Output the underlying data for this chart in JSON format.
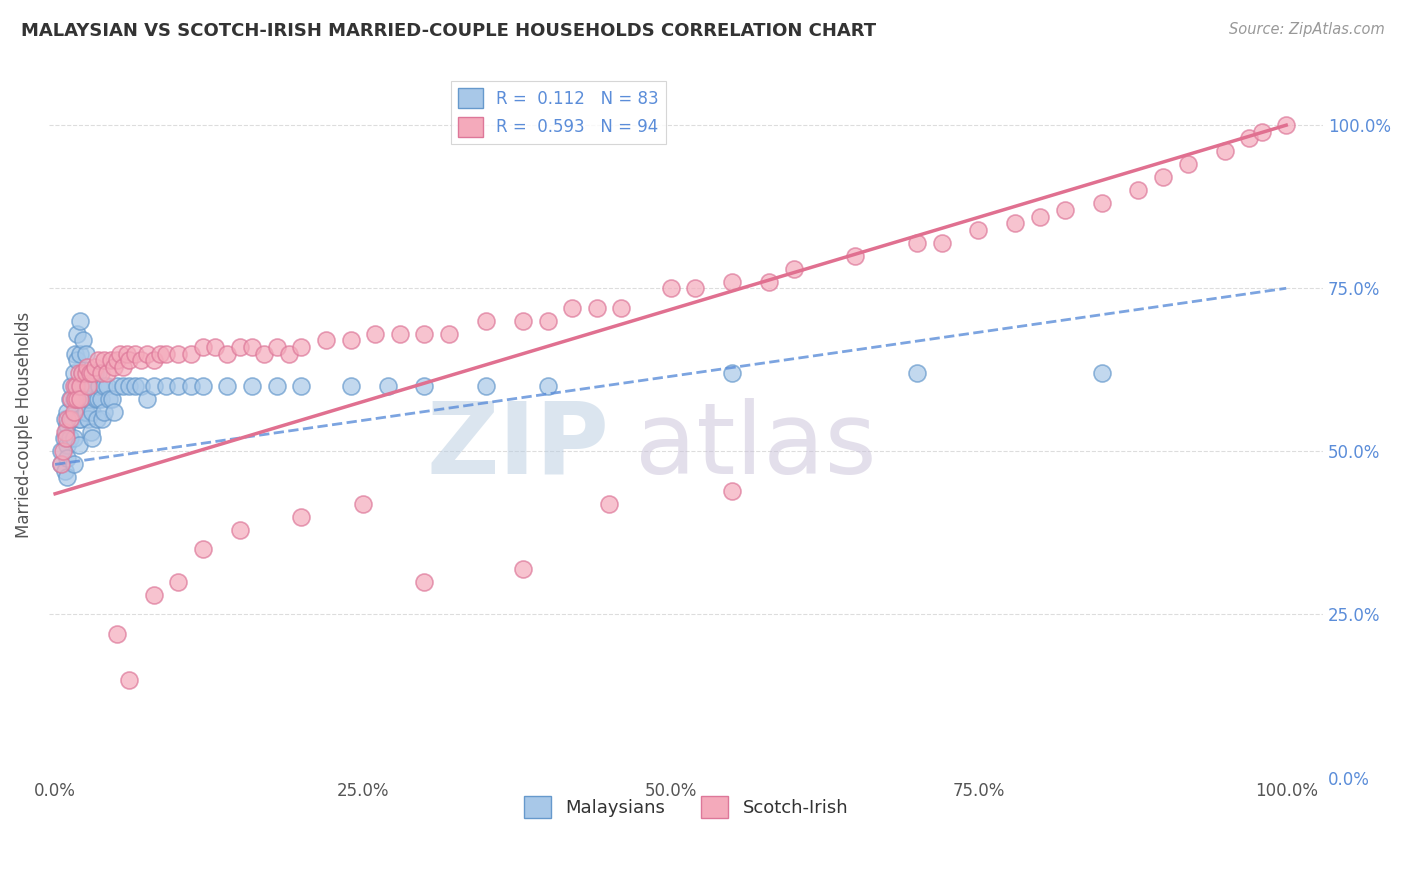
{
  "title": "MALAYSIAN VS SCOTCH-IRISH MARRIED-COUPLE HOUSEHOLDS CORRELATION CHART",
  "source": "Source: ZipAtlas.com",
  "ylabel": "Married-couple Households",
  "r_blue": 0.112,
  "n_blue": 83,
  "r_pink": 0.593,
  "n_pink": 94,
  "blue_color": "#A8C8E8",
  "blue_edge_color": "#6699CC",
  "blue_line_color": "#5B8DD9",
  "pink_color": "#F4AABB",
  "pink_edge_color": "#DD7799",
  "pink_line_color": "#E07090",
  "right_tick_color": "#5B8DD9",
  "grid_color": "#DDDDDD",
  "background": "#FFFFFF",
  "blue_line_intercept": 0.48,
  "blue_line_slope": 0.27,
  "pink_line_intercept": 0.435,
  "pink_line_slope": 0.565,
  "blue_x": [
    0.005,
    0.005,
    0.007,
    0.008,
    0.008,
    0.009,
    0.01,
    0.01,
    0.01,
    0.01,
    0.01,
    0.012,
    0.012,
    0.013,
    0.014,
    0.015,
    0.015,
    0.015,
    0.015,
    0.016,
    0.017,
    0.017,
    0.018,
    0.018,
    0.018,
    0.019,
    0.019,
    0.02,
    0.02,
    0.02,
    0.02,
    0.022,
    0.023,
    0.023,
    0.024,
    0.025,
    0.025,
    0.025,
    0.026,
    0.027,
    0.028,
    0.028,
    0.029,
    0.03,
    0.03,
    0.03,
    0.032,
    0.033,
    0.034,
    0.035,
    0.035,
    0.036,
    0.037,
    0.038,
    0.04,
    0.04,
    0.042,
    0.044,
    0.046,
    0.048,
    0.05,
    0.055,
    0.06,
    0.065,
    0.07,
    0.075,
    0.08,
    0.09,
    0.1,
    0.11,
    0.12,
    0.14,
    0.16,
    0.18,
    0.2,
    0.24,
    0.27,
    0.3,
    0.35,
    0.4,
    0.55,
    0.7,
    0.85
  ],
  "blue_y": [
    0.5,
    0.48,
    0.52,
    0.55,
    0.47,
    0.53,
    0.56,
    0.54,
    0.51,
    0.49,
    0.46,
    0.58,
    0.52,
    0.6,
    0.55,
    0.62,
    0.58,
    0.52,
    0.48,
    0.65,
    0.6,
    0.56,
    0.68,
    0.64,
    0.58,
    0.55,
    0.51,
    0.7,
    0.65,
    0.6,
    0.55,
    0.62,
    0.67,
    0.6,
    0.56,
    0.65,
    0.6,
    0.56,
    0.58,
    0.55,
    0.62,
    0.58,
    0.53,
    0.6,
    0.56,
    0.52,
    0.62,
    0.58,
    0.55,
    0.62,
    0.58,
    0.6,
    0.58,
    0.55,
    0.6,
    0.56,
    0.6,
    0.58,
    0.58,
    0.56,
    0.6,
    0.6,
    0.6,
    0.6,
    0.6,
    0.58,
    0.6,
    0.6,
    0.6,
    0.6,
    0.6,
    0.6,
    0.6,
    0.6,
    0.6,
    0.6,
    0.6,
    0.6,
    0.6,
    0.6,
    0.62,
    0.62,
    0.62
  ],
  "pink_x": [
    0.005,
    0.006,
    0.008,
    0.009,
    0.01,
    0.012,
    0.013,
    0.015,
    0.015,
    0.016,
    0.017,
    0.018,
    0.019,
    0.02,
    0.02,
    0.022,
    0.025,
    0.026,
    0.027,
    0.028,
    0.03,
    0.032,
    0.035,
    0.037,
    0.04,
    0.042,
    0.045,
    0.048,
    0.05,
    0.053,
    0.055,
    0.058,
    0.06,
    0.065,
    0.07,
    0.075,
    0.08,
    0.085,
    0.09,
    0.1,
    0.11,
    0.12,
    0.13,
    0.14,
    0.15,
    0.16,
    0.17,
    0.18,
    0.19,
    0.2,
    0.22,
    0.24,
    0.26,
    0.28,
    0.3,
    0.32,
    0.35,
    0.38,
    0.4,
    0.42,
    0.44,
    0.46,
    0.5,
    0.52,
    0.55,
    0.58,
    0.6,
    0.65,
    0.7,
    0.72,
    0.75,
    0.78,
    0.8,
    0.82,
    0.85,
    0.88,
    0.9,
    0.92,
    0.95,
    0.97,
    0.98,
    1.0,
    0.1,
    0.08,
    0.05,
    0.06,
    0.12,
    0.15,
    0.2,
    0.25,
    0.3,
    0.38,
    0.45,
    0.55
  ],
  "pink_y": [
    0.48,
    0.5,
    0.53,
    0.52,
    0.55,
    0.55,
    0.58,
    0.6,
    0.56,
    0.58,
    0.6,
    0.58,
    0.62,
    0.6,
    0.58,
    0.62,
    0.62,
    0.63,
    0.6,
    0.62,
    0.62,
    0.63,
    0.64,
    0.62,
    0.64,
    0.62,
    0.64,
    0.63,
    0.64,
    0.65,
    0.63,
    0.65,
    0.64,
    0.65,
    0.64,
    0.65,
    0.64,
    0.65,
    0.65,
    0.65,
    0.65,
    0.66,
    0.66,
    0.65,
    0.66,
    0.66,
    0.65,
    0.66,
    0.65,
    0.66,
    0.67,
    0.67,
    0.68,
    0.68,
    0.68,
    0.68,
    0.7,
    0.7,
    0.7,
    0.72,
    0.72,
    0.72,
    0.75,
    0.75,
    0.76,
    0.76,
    0.78,
    0.8,
    0.82,
    0.82,
    0.84,
    0.85,
    0.86,
    0.87,
    0.88,
    0.9,
    0.92,
    0.94,
    0.96,
    0.98,
    0.99,
    1.0,
    0.3,
    0.28,
    0.22,
    0.15,
    0.35,
    0.38,
    0.4,
    0.42,
    0.3,
    0.32,
    0.42,
    0.44
  ]
}
